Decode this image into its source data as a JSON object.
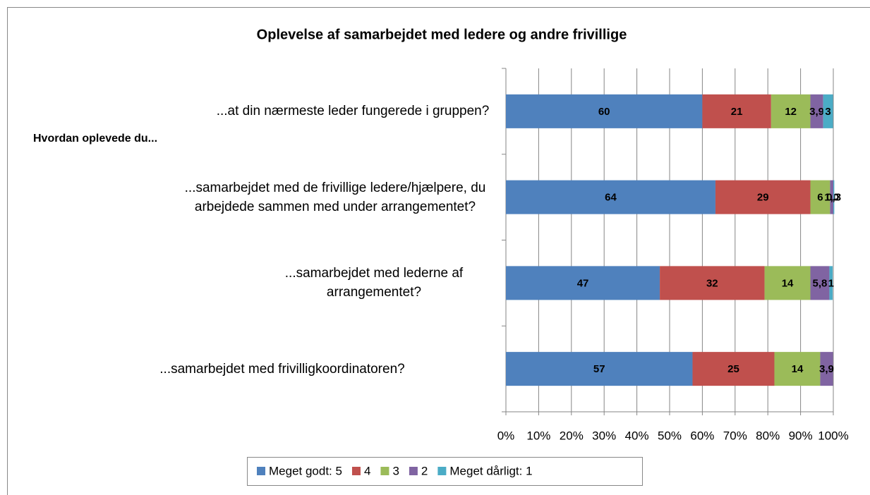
{
  "chart_data": {
    "type": "stacked_bar_horizontal",
    "title": "Oplevelse af samarbejdet med ledere og andre frivillige",
    "y_label": "Hvordan oplevede du...",
    "categories": [
      "...at din nærmeste leder fungerede i gruppen?",
      "...samarbejdet med de frivillige ledere/hjælpere, du arbejdede sammen med under arrangementet?",
      "...samarbejdet med lederne af arrangementet?",
      "...samarbejdet med frivilligkoordinatoren?"
    ],
    "series": [
      {
        "name": "Meget godt: 5",
        "color": "#4f81bd",
        "values": [
          60,
          64,
          47,
          57
        ]
      },
      {
        "name": "4",
        "color": "#c0504d",
        "values": [
          21,
          29,
          32,
          25
        ]
      },
      {
        "name": "3",
        "color": "#9bbb59",
        "values": [
          12,
          6,
          14,
          14
        ]
      },
      {
        "name": "2",
        "color": "#8064a2",
        "values": [
          3.9,
          1,
          5.8,
          3.9
        ],
        "value_labels": [
          "3,9",
          "1,0",
          "5,8",
          "3,9"
        ]
      },
      {
        "name": "Meget dårligt: 1",
        "color": "#4bacc6",
        "values": [
          3,
          0.3,
          1,
          null
        ],
        "value_labels": [
          "3",
          "0,3",
          "1",
          null
        ]
      }
    ],
    "xlim": [
      0,
      100
    ],
    "xticks": [
      {
        "value": 0,
        "label": "0%"
      },
      {
        "value": 10,
        "label": "10%"
      },
      {
        "value": 20,
        "label": "20%"
      },
      {
        "value": 30,
        "label": "30%"
      },
      {
        "value": 40,
        "label": "40%"
      },
      {
        "value": 50,
        "label": "50%"
      },
      {
        "value": 60,
        "label": "60%"
      },
      {
        "value": 70,
        "label": "70%"
      },
      {
        "value": 80,
        "label": "80%"
      },
      {
        "value": 90,
        "label": "90%"
      },
      {
        "value": 100,
        "label": "100%"
      }
    ],
    "grid": true,
    "legend": "bottom"
  }
}
